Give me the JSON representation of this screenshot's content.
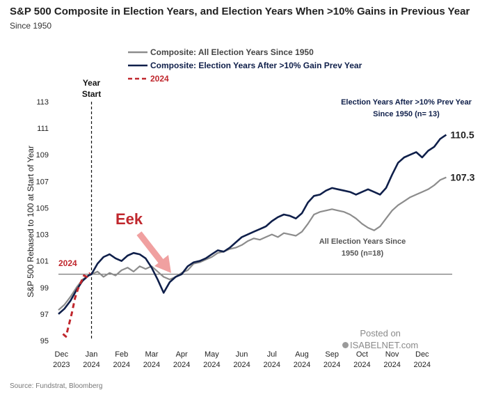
{
  "title": "S&P 500 Composite in Election Years, and Election Years When >10% Gains in Previous Year",
  "subtitle": "Since 1950",
  "source": "Source: Fundstrat, Bloomberg",
  "watermark": {
    "line1": "Posted on",
    "line2": "ISABELNET.com"
  },
  "colors": {
    "navy": "#0f1f4a",
    "gray": "#8c8c8c",
    "red": "#c0272d",
    "pink_arrow": "#f0a0a0"
  },
  "chart_data": {
    "type": "line",
    "ylabel": "S&P 500 Rebased to 100 at Start of Year",
    "ylim": [
      95,
      113
    ],
    "yticks": [
      95,
      97,
      99,
      101,
      103,
      105,
      107,
      109,
      111,
      113
    ],
    "baseline": 100,
    "x_unit": "months relative to start of 2024",
    "xlim": [
      -1.1,
      12.0
    ],
    "xticks": [
      {
        "x": -1,
        "label1": "Dec",
        "label2": "2023"
      },
      {
        "x": 0,
        "label1": "Jan",
        "label2": "2024"
      },
      {
        "x": 1,
        "label1": "Feb",
        "label2": "2024"
      },
      {
        "x": 2,
        "label1": "Mar",
        "label2": "2024"
      },
      {
        "x": 3,
        "label1": "Apr",
        "label2": "2024"
      },
      {
        "x": 4,
        "label1": "May",
        "label2": "2024"
      },
      {
        "x": 5,
        "label1": "Jun",
        "label2": "2024"
      },
      {
        "x": 6,
        "label1": "Jul",
        "label2": "2024"
      },
      {
        "x": 7,
        "label1": "Aug",
        "label2": "2024"
      },
      {
        "x": 8,
        "label1": "Sep",
        "label2": "2024"
      },
      {
        "x": 9,
        "label1": "Oct",
        "label2": "2024"
      },
      {
        "x": 10,
        "label1": "Nov",
        "label2": "2024"
      },
      {
        "x": 11,
        "label1": "Dec",
        "label2": "2024"
      }
    ],
    "year_start": {
      "x": 0,
      "label1": "Year",
      "label2": "Start"
    },
    "series": [
      {
        "name": "Composite: All Election Years Since 1950",
        "color": "#8c8c8c",
        "style": "solid",
        "x": [
          -1.1,
          -0.9,
          -0.7,
          -0.5,
          -0.3,
          -0.1,
          0.0,
          0.2,
          0.4,
          0.6,
          0.8,
          1.0,
          1.2,
          1.4,
          1.6,
          1.8,
          2.0,
          2.2,
          2.4,
          2.6,
          2.8,
          3.0,
          3.2,
          3.4,
          3.6,
          3.8,
          4.0,
          4.2,
          4.4,
          4.6,
          4.8,
          5.0,
          5.2,
          5.4,
          5.6,
          5.8,
          6.0,
          6.2,
          6.4,
          6.6,
          6.8,
          7.0,
          7.2,
          7.4,
          7.6,
          7.8,
          8.0,
          8.2,
          8.4,
          8.6,
          8.8,
          9.0,
          9.2,
          9.4,
          9.6,
          9.8,
          10.0,
          10.2,
          10.4,
          10.6,
          10.8,
          11.0,
          11.2,
          11.4,
          11.6,
          11.8
        ],
        "y": [
          97.3,
          97.7,
          98.3,
          99.0,
          99.6,
          99.9,
          100.0,
          100.2,
          99.8,
          100.1,
          99.9,
          100.3,
          100.5,
          100.2,
          100.6,
          100.4,
          100.6,
          100.2,
          99.8,
          99.6,
          99.8,
          100.1,
          100.3,
          100.8,
          100.9,
          101.1,
          101.3,
          101.6,
          101.7,
          101.9,
          102.0,
          102.2,
          102.5,
          102.7,
          102.6,
          102.8,
          103.0,
          102.8,
          103.1,
          103.0,
          102.9,
          103.2,
          103.8,
          104.5,
          104.7,
          104.8,
          104.9,
          104.8,
          104.7,
          104.5,
          104.2,
          103.8,
          103.5,
          103.3,
          103.6,
          104.2,
          104.8,
          105.2,
          105.5,
          105.8,
          106.0,
          106.2,
          106.4,
          106.7,
          107.1,
          107.3
        ],
        "end_label": "107.3"
      },
      {
        "name": "Composite: Election Years After >10% Gain Prev Year",
        "color": "#0f1f4a",
        "style": "solid",
        "x": [
          -1.1,
          -0.9,
          -0.7,
          -0.5,
          -0.3,
          -0.1,
          0.0,
          0.2,
          0.4,
          0.6,
          0.8,
          1.0,
          1.2,
          1.4,
          1.6,
          1.8,
          2.0,
          2.2,
          2.4,
          2.6,
          2.8,
          3.0,
          3.2,
          3.4,
          3.6,
          3.8,
          4.0,
          4.2,
          4.4,
          4.6,
          4.8,
          5.0,
          5.2,
          5.4,
          5.6,
          5.8,
          6.0,
          6.2,
          6.4,
          6.6,
          6.8,
          7.0,
          7.2,
          7.4,
          7.6,
          7.8,
          8.0,
          8.2,
          8.4,
          8.6,
          8.8,
          9.0,
          9.2,
          9.4,
          9.6,
          9.8,
          10.0,
          10.2,
          10.4,
          10.6,
          10.8,
          11.0,
          11.2,
          11.4,
          11.6,
          11.8
        ],
        "y": [
          97.0,
          97.4,
          98.0,
          98.8,
          99.5,
          99.9,
          100.0,
          100.8,
          101.3,
          101.5,
          101.2,
          101.0,
          101.4,
          101.6,
          101.5,
          101.2,
          100.5,
          99.6,
          98.6,
          99.4,
          99.8,
          100.0,
          100.6,
          100.9,
          101.0,
          101.2,
          101.5,
          101.8,
          101.7,
          102.0,
          102.4,
          102.8,
          103.0,
          103.2,
          103.4,
          103.6,
          104.0,
          104.3,
          104.5,
          104.4,
          104.2,
          104.6,
          105.4,
          105.9,
          106.0,
          106.3,
          106.5,
          106.4,
          106.3,
          106.2,
          106.0,
          106.2,
          106.4,
          106.2,
          106.0,
          106.5,
          107.5,
          108.4,
          108.8,
          109.0,
          109.2,
          108.8,
          109.3,
          109.6,
          110.2,
          110.5
        ],
        "end_label": "110.5"
      },
      {
        "name": "2024",
        "color": "#c0272d",
        "style": "dashed",
        "x": [
          -0.95,
          -0.85,
          -0.75,
          -0.65,
          -0.55,
          -0.45,
          -0.35,
          -0.25,
          -0.15,
          -0.05
        ],
        "y": [
          95.5,
          95.3,
          96.2,
          97.1,
          98.2,
          98.9,
          99.4,
          99.9,
          99.8,
          100.1
        ]
      }
    ],
    "annotations": [
      {
        "text": "Election Years After >10% Prev Year",
        "color": "#0f1f4a"
      },
      {
        "text": "Since 1950 (n= 13)",
        "color": "#0f1f4a"
      },
      {
        "text": "All Election Years Since",
        "color": "#555555"
      },
      {
        "text": "1950 (n=18)",
        "color": "#555555"
      },
      {
        "text": "Eek",
        "color": "#c0272d"
      },
      {
        "text": "2024",
        "color": "#c0272d"
      }
    ]
  }
}
